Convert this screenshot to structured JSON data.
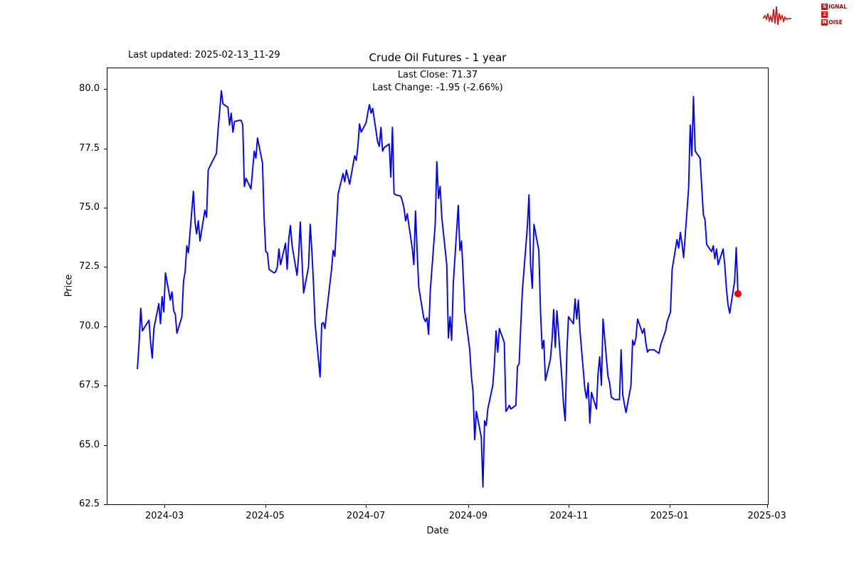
{
  "header": {
    "last_updated": "Last updated: 2025-02-13_11-29",
    "title": "Crude Oil Futures - 1 year"
  },
  "annotation": {
    "last_close": "Last Close: 71.37",
    "last_change": "Last Change: -1.95 (-2.66%)"
  },
  "logo": {
    "s": "S",
    "signal_rest": "IGNAL",
    "two": "2",
    "n": "N",
    "noise_rest": "OISE",
    "accent_color": "#d21414",
    "text_color": "#8a1111"
  },
  "chart_data": {
    "type": "line",
    "title": "Crude Oil Futures - 1 year",
    "xlabel": "Date",
    "ylabel": "Price",
    "line_color": "#0000ff",
    "last_point_color": "#ff0000",
    "last_close": 71.37,
    "last_change": -1.95,
    "last_change_pct": "-2.66%",
    "grid": false,
    "x_ticks": [
      "2024-03",
      "2024-05",
      "2024-07",
      "2024-09",
      "2024-11",
      "2025-01",
      "2025-03"
    ],
    "y_ticks": [
      62.5,
      65.0,
      67.5,
      70.0,
      72.5,
      75.0,
      77.5,
      80.0
    ],
    "xlim": [
      "2024-01-26",
      "2025-03-02"
    ],
    "ylim": [
      62.47,
      80.9
    ],
    "points": [
      [
        "2024-02-13",
        68.2
      ],
      [
        "2024-02-14",
        69.3
      ],
      [
        "2024-02-15",
        70.75
      ],
      [
        "2024-02-16",
        69.8
      ],
      [
        "2024-02-20",
        70.25
      ],
      [
        "2024-02-21",
        69.3
      ],
      [
        "2024-02-22",
        68.65
      ],
      [
        "2024-02-23",
        69.9
      ],
      [
        "2024-02-26",
        70.95
      ],
      [
        "2024-02-27",
        70.1
      ],
      [
        "2024-02-28",
        71.25
      ],
      [
        "2024-02-29",
        70.6
      ],
      [
        "2024-03-01",
        72.25
      ],
      [
        "2024-03-04",
        71.1
      ],
      [
        "2024-03-05",
        71.45
      ],
      [
        "2024-03-06",
        70.65
      ],
      [
        "2024-03-07",
        70.5
      ],
      [
        "2024-03-08",
        69.7
      ],
      [
        "2024-03-11",
        70.4
      ],
      [
        "2024-03-12",
        71.9
      ],
      [
        "2024-03-13",
        72.3
      ],
      [
        "2024-03-14",
        73.4
      ],
      [
        "2024-03-15",
        73.1
      ],
      [
        "2024-03-18",
        75.7
      ],
      [
        "2024-03-19",
        74.4
      ],
      [
        "2024-03-20",
        73.9
      ],
      [
        "2024-03-21",
        74.45
      ],
      [
        "2024-03-22",
        73.6
      ],
      [
        "2024-03-25",
        74.9
      ],
      [
        "2024-03-26",
        74.6
      ],
      [
        "2024-03-27",
        76.6
      ],
      [
        "2024-03-28",
        76.75
      ],
      [
        "2024-04-01",
        77.3
      ],
      [
        "2024-04-02",
        78.3
      ],
      [
        "2024-04-03",
        79.1
      ],
      [
        "2024-04-04",
        79.95
      ],
      [
        "2024-04-05",
        79.4
      ],
      [
        "2024-04-08",
        79.25
      ],
      [
        "2024-04-09",
        78.5
      ],
      [
        "2024-04-10",
        79.0
      ],
      [
        "2024-04-11",
        78.2
      ],
      [
        "2024-04-12",
        78.65
      ],
      [
        "2024-04-15",
        78.7
      ],
      [
        "2024-04-16",
        78.7
      ],
      [
        "2024-04-17",
        78.5
      ],
      [
        "2024-04-18",
        75.9
      ],
      [
        "2024-04-19",
        76.25
      ],
      [
        "2024-04-22",
        75.8
      ],
      [
        "2024-04-23",
        76.6
      ],
      [
        "2024-04-24",
        77.4
      ],
      [
        "2024-04-25",
        77.1
      ],
      [
        "2024-04-26",
        77.95
      ],
      [
        "2024-04-29",
        76.9
      ],
      [
        "2024-04-30",
        74.6
      ],
      [
        "2024-05-01",
        73.15
      ],
      [
        "2024-05-02",
        73.1
      ],
      [
        "2024-05-03",
        72.4
      ],
      [
        "2024-05-06",
        72.25
      ],
      [
        "2024-05-07",
        72.3
      ],
      [
        "2024-05-08",
        72.5
      ],
      [
        "2024-05-09",
        73.26
      ],
      [
        "2024-05-10",
        72.6
      ],
      [
        "2024-05-13",
        73.5
      ],
      [
        "2024-05-14",
        72.4
      ],
      [
        "2024-05-15",
        73.7
      ],
      [
        "2024-05-16",
        74.25
      ],
      [
        "2024-05-17",
        73.4
      ],
      [
        "2024-05-20",
        72.15
      ],
      [
        "2024-05-21",
        73.0
      ],
      [
        "2024-05-22",
        74.4
      ],
      [
        "2024-05-23",
        72.8
      ],
      [
        "2024-05-24",
        71.4
      ],
      [
        "2024-05-27",
        72.5
      ],
      [
        "2024-05-28",
        74.3
      ],
      [
        "2024-05-29",
        73.2
      ],
      [
        "2024-05-30",
        71.8
      ],
      [
        "2024-05-31",
        70.1
      ],
      [
        "2024-06-03",
        67.85
      ],
      [
        "2024-06-04",
        70.1
      ],
      [
        "2024-06-05",
        70.15
      ],
      [
        "2024-06-06",
        69.9
      ],
      [
        "2024-06-07",
        70.6
      ],
      [
        "2024-06-10",
        72.4
      ],
      [
        "2024-06-11",
        73.2
      ],
      [
        "2024-06-12",
        72.95
      ],
      [
        "2024-06-13",
        74.3
      ],
      [
        "2024-06-14",
        75.6
      ],
      [
        "2024-06-17",
        76.45
      ],
      [
        "2024-06-18",
        76.1
      ],
      [
        "2024-06-19",
        76.6
      ],
      [
        "2024-06-20",
        76.3
      ],
      [
        "2024-06-21",
        76.0
      ],
      [
        "2024-06-24",
        77.2
      ],
      [
        "2024-06-25",
        77.0
      ],
      [
        "2024-06-26",
        77.6
      ],
      [
        "2024-06-27",
        78.55
      ],
      [
        "2024-06-28",
        78.2
      ],
      [
        "2024-07-01",
        78.6
      ],
      [
        "2024-07-02",
        79.0
      ],
      [
        "2024-07-03",
        79.36
      ],
      [
        "2024-07-04",
        79.0
      ],
      [
        "2024-07-05",
        79.2
      ],
      [
        "2024-07-08",
        77.8
      ],
      [
        "2024-07-09",
        77.6
      ],
      [
        "2024-07-10",
        78.4
      ],
      [
        "2024-07-11",
        77.4
      ],
      [
        "2024-07-12",
        77.55
      ],
      [
        "2024-07-15",
        77.7
      ],
      [
        "2024-07-16",
        76.3
      ],
      [
        "2024-07-17",
        78.4
      ],
      [
        "2024-07-18",
        75.6
      ],
      [
        "2024-07-19",
        75.55
      ],
      [
        "2024-07-22",
        75.5
      ],
      [
        "2024-07-23",
        75.3
      ],
      [
        "2024-07-24",
        75.0
      ],
      [
        "2024-07-25",
        74.45
      ],
      [
        "2024-07-26",
        74.75
      ],
      [
        "2024-07-29",
        73.3
      ],
      [
        "2024-07-30",
        72.6
      ],
      [
        "2024-07-31",
        74.87
      ],
      [
        "2024-08-01",
        73.2
      ],
      [
        "2024-08-02",
        71.65
      ],
      [
        "2024-08-05",
        70.35
      ],
      [
        "2024-08-06",
        70.2
      ],
      [
        "2024-08-07",
        70.35
      ],
      [
        "2024-08-08",
        69.65
      ],
      [
        "2024-08-09",
        71.5
      ],
      [
        "2024-08-12",
        74.3
      ],
      [
        "2024-08-13",
        76.95
      ],
      [
        "2024-08-14",
        75.4
      ],
      [
        "2024-08-15",
        75.9
      ],
      [
        "2024-08-16",
        74.6
      ],
      [
        "2024-08-19",
        72.6
      ],
      [
        "2024-08-20",
        69.5
      ],
      [
        "2024-08-21",
        70.4
      ],
      [
        "2024-08-22",
        69.4
      ],
      [
        "2024-08-23",
        71.8
      ],
      [
        "2024-08-26",
        75.1
      ],
      [
        "2024-08-27",
        73.2
      ],
      [
        "2024-08-28",
        73.6
      ],
      [
        "2024-08-29",
        72.2
      ],
      [
        "2024-08-30",
        70.6
      ],
      [
        "2024-09-02",
        69.0
      ],
      [
        "2024-09-03",
        67.9
      ],
      [
        "2024-09-04",
        67.2
      ],
      [
        "2024-09-05",
        65.2
      ],
      [
        "2024-09-06",
        66.4
      ],
      [
        "2024-09-09",
        65.3
      ],
      [
        "2024-09-10",
        63.2
      ],
      [
        "2024-09-11",
        66.0
      ],
      [
        "2024-09-12",
        65.8
      ],
      [
        "2024-09-13",
        66.5
      ],
      [
        "2024-09-16",
        67.5
      ],
      [
        "2024-09-17",
        68.4
      ],
      [
        "2024-09-18",
        69.8
      ],
      [
        "2024-09-19",
        68.9
      ],
      [
        "2024-09-20",
        69.9
      ],
      [
        "2024-09-23",
        69.3
      ],
      [
        "2024-09-24",
        66.4
      ],
      [
        "2024-09-25",
        66.5
      ],
      [
        "2024-09-26",
        66.65
      ],
      [
        "2024-09-27",
        66.5
      ],
      [
        "2024-09-30",
        66.65
      ],
      [
        "2024-10-01",
        68.3
      ],
      [
        "2024-10-02",
        68.4
      ],
      [
        "2024-10-03",
        70.0
      ],
      [
        "2024-10-04",
        71.5
      ],
      [
        "2024-10-07",
        74.2
      ],
      [
        "2024-10-08",
        75.55
      ],
      [
        "2024-10-09",
        72.55
      ],
      [
        "2024-10-10",
        71.6
      ],
      [
        "2024-10-11",
        74.3
      ],
      [
        "2024-10-14",
        73.2
      ],
      [
        "2024-10-15",
        70.6
      ],
      [
        "2024-10-16",
        69.05
      ],
      [
        "2024-10-17",
        69.4
      ],
      [
        "2024-10-18",
        67.7
      ],
      [
        "2024-10-21",
        68.6
      ],
      [
        "2024-10-22",
        69.4
      ],
      [
        "2024-10-23",
        70.7
      ],
      [
        "2024-10-24",
        69.1
      ],
      [
        "2024-10-25",
        70.65
      ],
      [
        "2024-10-28",
        67.8
      ],
      [
        "2024-10-29",
        66.7
      ],
      [
        "2024-10-30",
        66.0
      ],
      [
        "2024-10-31",
        68.9
      ],
      [
        "2024-11-01",
        70.4
      ],
      [
        "2024-11-04",
        70.1
      ],
      [
        "2024-11-05",
        71.15
      ],
      [
        "2024-11-06",
        70.3
      ],
      [
        "2024-11-07",
        71.1
      ],
      [
        "2024-11-08",
        69.8
      ],
      [
        "2024-11-11",
        67.3
      ],
      [
        "2024-11-12",
        66.95
      ],
      [
        "2024-11-13",
        67.6
      ],
      [
        "2024-11-14",
        65.9
      ],
      [
        "2024-11-15",
        67.2
      ],
      [
        "2024-11-18",
        66.5
      ],
      [
        "2024-11-19",
        68.0
      ],
      [
        "2024-11-20",
        68.7
      ],
      [
        "2024-11-21",
        67.5
      ],
      [
        "2024-11-22",
        70.3
      ],
      [
        "2024-11-25",
        67.9
      ],
      [
        "2024-11-26",
        67.6
      ],
      [
        "2024-11-27",
        67.0
      ],
      [
        "2024-11-29",
        66.9
      ],
      [
        "2024-12-02",
        66.9
      ],
      [
        "2024-12-03",
        69.0
      ],
      [
        "2024-12-04",
        67.1
      ],
      [
        "2024-12-05",
        66.7
      ],
      [
        "2024-12-06",
        66.35
      ],
      [
        "2024-12-09",
        67.5
      ],
      [
        "2024-12-10",
        69.4
      ],
      [
        "2024-12-11",
        69.2
      ],
      [
        "2024-12-12",
        69.5
      ],
      [
        "2024-12-13",
        70.3
      ],
      [
        "2024-12-16",
        69.7
      ],
      [
        "2024-12-17",
        69.9
      ],
      [
        "2024-12-18",
        69.3
      ],
      [
        "2024-12-19",
        68.9
      ],
      [
        "2024-12-20",
        69.0
      ],
      [
        "2024-12-23",
        69.0
      ],
      [
        "2024-12-24",
        68.95
      ],
      [
        "2024-12-26",
        68.85
      ],
      [
        "2024-12-27",
        69.2
      ],
      [
        "2024-12-30",
        69.8
      ],
      [
        "2024-12-31",
        70.2
      ],
      [
        "2025-01-02",
        70.6
      ],
      [
        "2025-01-03",
        72.4
      ],
      [
        "2025-01-06",
        73.66
      ],
      [
        "2025-01-07",
        73.3
      ],
      [
        "2025-01-08",
        73.96
      ],
      [
        "2025-01-09",
        73.5
      ],
      [
        "2025-01-10",
        72.9
      ],
      [
        "2025-01-13",
        75.8
      ],
      [
        "2025-01-14",
        78.5
      ],
      [
        "2025-01-15",
        77.2
      ],
      [
        "2025-01-16",
        79.7
      ],
      [
        "2025-01-17",
        77.4
      ],
      [
        "2025-01-20",
        77.1
      ],
      [
        "2025-01-21",
        75.9
      ],
      [
        "2025-01-22",
        74.7
      ],
      [
        "2025-01-23",
        74.5
      ],
      [
        "2025-01-24",
        73.45
      ],
      [
        "2025-01-27",
        73.15
      ],
      [
        "2025-01-28",
        73.4
      ],
      [
        "2025-01-29",
        72.85
      ],
      [
        "2025-01-30",
        73.26
      ],
      [
        "2025-01-31",
        72.6
      ],
      [
        "2025-02-03",
        73.26
      ],
      [
        "2025-02-04",
        72.6
      ],
      [
        "2025-02-05",
        71.6
      ],
      [
        "2025-02-06",
        70.9
      ],
      [
        "2025-02-07",
        70.55
      ],
      [
        "2025-02-10",
        71.9
      ],
      [
        "2025-02-11",
        73.32
      ],
      [
        "2025-02-12",
        71.37
      ]
    ]
  }
}
